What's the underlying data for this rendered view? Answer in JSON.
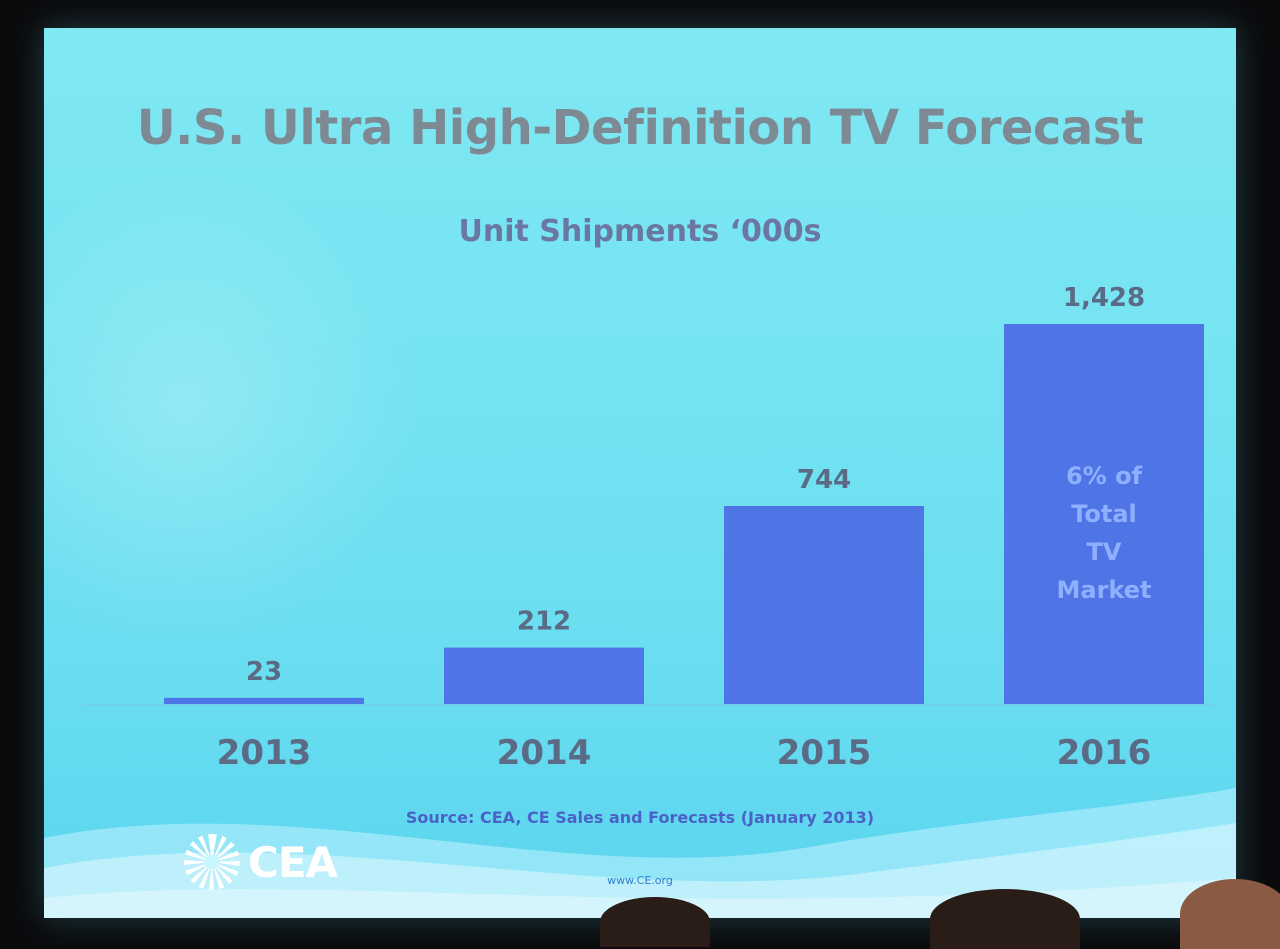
{
  "slide": {
    "title": "U.S. Ultra High-Definition TV Forecast",
    "subtitle": "Unit Shipments ‘000s",
    "source": "Source: CEA, CE Sales and Forecasts (January 2013)",
    "logo_text": "CEA",
    "url": "www.CE.org"
  },
  "colors": {
    "screen_bg": "#74e3f1",
    "bar": "#4f74e6",
    "title": "#7e8a93",
    "subtitle": "#6b77a3",
    "labels": "#5b6b86",
    "source": "#4a62c8"
  },
  "chart_data": {
    "type": "bar",
    "title": "U.S. Ultra High-Definition TV Forecast",
    "subtitle": "Unit Shipments ‘000s",
    "categories": [
      "2013",
      "2014",
      "2015",
      "2016"
    ],
    "values": [
      23,
      212,
      744,
      1428
    ],
    "data_labels": [
      "23",
      "212",
      "744",
      "1,428"
    ],
    "bar_annotation": {
      "category": "2016",
      "lines": [
        "6% of",
        "Total",
        "TV",
        "Market"
      ]
    },
    "xlabel": "",
    "ylabel": "",
    "ylim": [
      0,
      1428
    ],
    "grid": false,
    "legend": "none"
  }
}
